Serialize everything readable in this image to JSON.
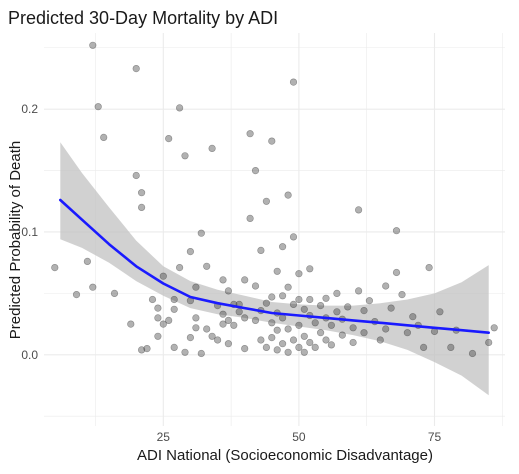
{
  "chart_data": {
    "type": "scatter",
    "title": "Predicted 30-Day Mortality by ADI",
    "xlabel": "ADI National (Socioeconomic Disadvantage)",
    "ylabel": "Predicted Probability of Death",
    "xlim": [
      3,
      88
    ],
    "ylim": [
      -0.058,
      0.262
    ],
    "x_ticks": [
      25,
      50,
      75
    ],
    "x_tick_labels": [
      "25",
      "50",
      "75"
    ],
    "y_ticks": [
      0.0,
      0.1,
      0.2
    ],
    "y_tick_labels": [
      "0.0",
      "0.1",
      "0.2"
    ],
    "grid": true,
    "background": "white",
    "colors": {
      "points": "#333333",
      "smooth_line": "#1a1aff",
      "confidence_band": "#bfbfbf",
      "grid": "#ebebeb"
    },
    "series": [
      {
        "kind": "points",
        "points": [
          [
            5,
            0.071
          ],
          [
            9,
            0.049
          ],
          [
            11,
            0.076
          ],
          [
            12,
            0.055
          ],
          [
            12,
            0.252
          ],
          [
            13,
            0.202
          ],
          [
            14,
            0.177
          ],
          [
            16,
            0.05
          ],
          [
            19,
            0.025
          ],
          [
            20,
            0.146
          ],
          [
            20,
            0.233
          ],
          [
            21,
            0.132
          ],
          [
            21,
            0.004
          ],
          [
            21,
            0.12
          ],
          [
            22,
            0.005
          ],
          [
            23,
            0.045
          ],
          [
            24,
            0.03
          ],
          [
            24,
            0.038
          ],
          [
            24,
            0.015
          ],
          [
            25,
            0.025
          ],
          [
            25,
            0.064
          ],
          [
            26,
            0.028
          ],
          [
            26,
            0.176
          ],
          [
            27,
            0.045
          ],
          [
            27,
            0.006
          ],
          [
            27,
            0.037
          ],
          [
            28,
            0.071
          ],
          [
            28,
            0.201
          ],
          [
            29,
            0.002
          ],
          [
            29,
            0.162
          ],
          [
            30,
            0.044
          ],
          [
            30,
            0.014
          ],
          [
            30,
            0.084
          ],
          [
            31,
            0.03
          ],
          [
            31,
            0.055
          ],
          [
            31,
            0.022
          ],
          [
            32,
            0.099
          ],
          [
            32,
            0.001
          ],
          [
            33,
            0.072
          ],
          [
            33,
            0.021
          ],
          [
            34,
            0.015
          ],
          [
            34,
            0.168
          ],
          [
            35,
            0.04
          ],
          [
            35,
            0.012
          ],
          [
            36,
            0.061
          ],
          [
            36,
            0.033
          ],
          [
            36,
            0.025
          ],
          [
            37,
            0.028
          ],
          [
            37,
            0.009
          ],
          [
            37,
            0.052
          ],
          [
            38,
            0.024
          ],
          [
            38,
            0.041
          ],
          [
            39,
            0.041
          ],
          [
            39,
            0.035
          ],
          [
            40,
            0.061
          ],
          [
            40,
            0.03
          ],
          [
            40,
            0.005
          ],
          [
            41,
            0.111
          ],
          [
            41,
            0.18
          ],
          [
            42,
            0.15
          ],
          [
            42,
            0.056
          ],
          [
            42,
            0.028
          ],
          [
            43,
            0.036
          ],
          [
            43,
            0.012
          ],
          [
            43,
            0.085
          ],
          [
            44,
            0.125
          ],
          [
            44,
            0.042
          ],
          [
            44,
            0.006
          ],
          [
            45,
            0.174
          ],
          [
            45,
            0.047
          ],
          [
            45,
            0.026
          ],
          [
            45,
            0.014
          ],
          [
            46,
            0.068
          ],
          [
            46,
            0.034
          ],
          [
            46,
            0.004
          ],
          [
            46,
            0.02
          ],
          [
            47,
            0.088
          ],
          [
            47,
            0.048
          ],
          [
            47,
            0.03
          ],
          [
            47,
            0.009
          ],
          [
            48,
            0.13
          ],
          [
            48,
            0.055
          ],
          [
            48,
            0.021
          ],
          [
            48,
            0.002
          ],
          [
            49,
            0.096
          ],
          [
            49,
            0.041
          ],
          [
            49,
            0.012
          ],
          [
            49,
            0.222
          ],
          [
            50,
            0.066
          ],
          [
            50,
            0.045
          ],
          [
            50,
            0.024
          ],
          [
            50,
            0.006
          ],
          [
            51,
            0.037
          ],
          [
            51,
            0.015
          ],
          [
            51,
            0.002
          ],
          [
            52,
            0.07
          ],
          [
            52,
            0.045
          ],
          [
            52,
            0.032
          ],
          [
            52,
            0.01
          ],
          [
            53,
            0.026
          ],
          [
            53,
            0.006
          ],
          [
            54,
            0.04
          ],
          [
            54,
            0.018
          ],
          [
            55,
            0.046
          ],
          [
            55,
            0.03
          ],
          [
            55,
            0.012
          ],
          [
            56,
            0.024
          ],
          [
            56,
            0.008
          ],
          [
            57,
            0.05
          ],
          [
            57,
            0.035
          ],
          [
            58,
            0.029
          ],
          [
            58,
            0.016
          ],
          [
            59,
            0.039
          ],
          [
            60,
            0.022
          ],
          [
            60,
            0.01
          ],
          [
            61,
            0.118
          ],
          [
            61,
            0.052
          ],
          [
            62,
            0.036
          ],
          [
            62,
            0.018
          ],
          [
            63,
            0.044
          ],
          [
            64,
            0.027
          ],
          [
            65,
            0.012
          ],
          [
            66,
            0.056
          ],
          [
            66,
            0.021
          ],
          [
            67,
            0.038
          ],
          [
            68,
            0.101
          ],
          [
            68,
            0.067
          ],
          [
            69,
            0.049
          ],
          [
            70,
            0.018
          ],
          [
            71,
            0.031
          ],
          [
            72,
            0.024
          ],
          [
            73,
            0.006
          ],
          [
            74,
            0.071
          ],
          [
            75,
            0.019
          ],
          [
            76,
            0.035
          ],
          [
            78,
            0.006
          ],
          [
            79,
            0.02
          ],
          [
            82,
            0.001
          ],
          [
            85,
            0.01
          ],
          [
            86,
            0.022
          ]
        ]
      },
      {
        "kind": "loess_line",
        "x": [
          6,
          10,
          15,
          20,
          25,
          30,
          35,
          40,
          45,
          50,
          55,
          60,
          65,
          70,
          75,
          80,
          85
        ],
        "y": [
          0.126,
          0.11,
          0.09,
          0.072,
          0.058,
          0.047,
          0.042,
          0.038,
          0.034,
          0.032,
          0.03,
          0.028,
          0.026,
          0.024,
          0.022,
          0.02,
          0.018
        ],
        "ci_lower": [
          0.094,
          0.087,
          0.075,
          0.06,
          0.048,
          0.038,
          0.033,
          0.03,
          0.026,
          0.023,
          0.02,
          0.016,
          0.011,
          0.004,
          -0.006,
          -0.017,
          -0.033
        ],
        "ci_upper": [
          0.173,
          0.148,
          0.12,
          0.093,
          0.072,
          0.06,
          0.053,
          0.048,
          0.043,
          0.041,
          0.04,
          0.04,
          0.042,
          0.045,
          0.05,
          0.059,
          0.073
        ]
      }
    ]
  }
}
